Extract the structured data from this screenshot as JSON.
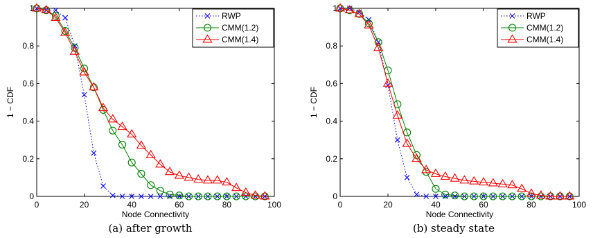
{
  "chart_data": [
    {
      "type": "line",
      "caption": "(a) after growth",
      "xlabel": "Node Connectivity",
      "ylabel": "1 − CDF",
      "xlim": [
        0,
        100
      ],
      "ylim": [
        0,
        1
      ],
      "xticks": [
        "0",
        "20",
        "40",
        "60",
        "80",
        "100"
      ],
      "yticks": [
        "0",
        "0.2",
        "0.4",
        "0.6",
        "0.8",
        "1"
      ],
      "grid": false,
      "legend_position": "top-right",
      "series": [
        {
          "name": "RWP",
          "color": "#0000ff",
          "marker": "x",
          "line_style": "dotted",
          "x": [
            0,
            4,
            8,
            12,
            16,
            20,
            24,
            28,
            32,
            36,
            40,
            44,
            48,
            52,
            56,
            60,
            64,
            68,
            72,
            76,
            80,
            84,
            88,
            92,
            96
          ],
          "y": [
            1.0,
            0.99,
            0.99,
            0.95,
            0.8,
            0.54,
            0.23,
            0.055,
            0.005,
            0.0,
            0.0,
            0.0,
            0.0,
            0.0,
            0.0,
            0.0,
            0.0,
            0.0,
            0.0,
            0.0,
            0.0,
            0.0,
            0.0,
            0.0,
            0.0
          ]
        },
        {
          "name": "CMM(1.2)",
          "color": "#008000",
          "marker": "circle",
          "line_style": "solid",
          "x": [
            0,
            4,
            8,
            12,
            16,
            20,
            24,
            28,
            32,
            36,
            40,
            44,
            48,
            52,
            56,
            60,
            64,
            68,
            72,
            76,
            80,
            84,
            88,
            92,
            96
          ],
          "y": [
            1.0,
            0.99,
            0.96,
            0.88,
            0.79,
            0.68,
            0.58,
            0.46,
            0.35,
            0.275,
            0.18,
            0.12,
            0.06,
            0.03,
            0.01,
            0.005,
            0.0,
            0.0,
            0.0,
            0.0,
            0.0,
            0.0,
            0.0,
            0.0,
            0.0
          ]
        },
        {
          "name": "CMM(1.4)",
          "color": "#ff0000",
          "marker": "triangle",
          "line_style": "solid",
          "x": [
            0,
            4,
            8,
            12,
            16,
            20,
            24,
            28,
            32,
            36,
            40,
            44,
            48,
            52,
            56,
            60,
            64,
            68,
            72,
            76,
            80,
            84,
            88,
            92,
            96
          ],
          "y": [
            1.0,
            0.99,
            0.95,
            0.87,
            0.77,
            0.66,
            0.58,
            0.47,
            0.41,
            0.37,
            0.33,
            0.27,
            0.22,
            0.17,
            0.13,
            0.11,
            0.1,
            0.09,
            0.085,
            0.085,
            0.075,
            0.045,
            0.02,
            0.005,
            0.0
          ]
        }
      ]
    },
    {
      "type": "line",
      "caption": "(b) steady state",
      "xlabel": "Node Connectivity",
      "ylabel": "1 − CDF",
      "xlim": [
        0,
        100
      ],
      "ylim": [
        0,
        1
      ],
      "xticks": [
        "0",
        "20",
        "40",
        "60",
        "80",
        "100"
      ],
      "yticks": [
        "0",
        "0.2",
        "0.4",
        "0.6",
        "0.8",
        "1"
      ],
      "grid": false,
      "legend_position": "top-right",
      "series": [
        {
          "name": "RWP",
          "color": "#0000ff",
          "marker": "x",
          "line_style": "dotted",
          "x": [
            0,
            4,
            8,
            12,
            16,
            20,
            24,
            28,
            32,
            36,
            40,
            44,
            48,
            52,
            56,
            60,
            64,
            68,
            72,
            76,
            80,
            84,
            88,
            92,
            96
          ],
          "y": [
            1.0,
            1.0,
            0.98,
            0.94,
            0.82,
            0.59,
            0.3,
            0.1,
            0.01,
            0.0,
            0.0,
            0.0,
            0.0,
            0.0,
            0.0,
            0.0,
            0.0,
            0.0,
            0.0,
            0.0,
            0.0,
            0.0,
            0.0,
            0.0,
            0.0
          ]
        },
        {
          "name": "CMM(1.2)",
          "color": "#008000",
          "marker": "circle",
          "line_style": "solid",
          "x": [
            0,
            4,
            8,
            12,
            16,
            20,
            24,
            28,
            32,
            36,
            40,
            44,
            48,
            52,
            56,
            60,
            64,
            68,
            72,
            76,
            80,
            84,
            88,
            92,
            96
          ],
          "y": [
            1.0,
            0.99,
            0.97,
            0.92,
            0.82,
            0.67,
            0.49,
            0.34,
            0.22,
            0.13,
            0.04,
            0.01,
            0.005,
            0.0,
            0.0,
            0.0,
            0.0,
            0.0,
            0.0,
            0.0,
            0.0,
            0.0,
            0.0,
            0.0,
            0.0
          ]
        },
        {
          "name": "CMM(1.4)",
          "color": "#ff0000",
          "marker": "triangle",
          "line_style": "solid",
          "x": [
            0,
            4,
            8,
            12,
            16,
            20,
            24,
            28,
            32,
            36,
            40,
            44,
            48,
            52,
            56,
            60,
            64,
            68,
            72,
            76,
            80,
            84,
            88,
            92,
            96
          ],
          "y": [
            1.0,
            0.99,
            0.97,
            0.91,
            0.79,
            0.6,
            0.43,
            0.28,
            0.2,
            0.14,
            0.12,
            0.105,
            0.095,
            0.085,
            0.08,
            0.075,
            0.07,
            0.065,
            0.06,
            0.04,
            0.015,
            0.005,
            0.0,
            0.0,
            0.0
          ]
        }
      ]
    }
  ]
}
